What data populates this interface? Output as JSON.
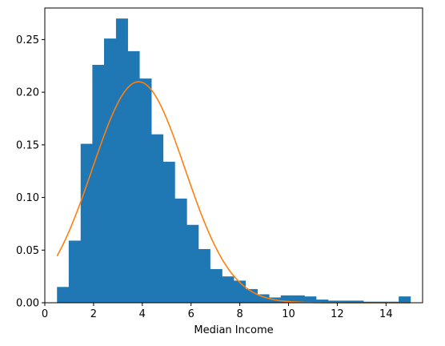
{
  "chart_data": {
    "type": "bar",
    "subtype": "histogram-with-density-curve",
    "title": "",
    "xlabel": "Median Income",
    "ylabel": "",
    "xlim": [
      0.0,
      15.5
    ],
    "ylim": [
      0.0,
      0.28
    ],
    "xticks": [
      0,
      2,
      4,
      6,
      8,
      10,
      12,
      14
    ],
    "yticks": [
      0.0,
      0.05,
      0.1,
      0.15,
      0.2,
      0.25
    ],
    "xtick_labels": [
      "0",
      "2",
      "4",
      "6",
      "8",
      "10",
      "12",
      "14"
    ],
    "ytick_labels": [
      "0.00",
      "0.05",
      "0.10",
      "0.15",
      "0.20",
      "0.25"
    ],
    "grid": false,
    "legend": "none",
    "bin_edges": [
      0.5,
      0.98,
      1.47,
      1.95,
      2.43,
      2.92,
      3.4,
      3.88,
      4.37,
      4.85,
      5.33,
      5.82,
      6.3,
      6.78,
      7.27,
      7.75,
      8.23,
      8.72,
      9.2,
      9.68,
      10.17,
      10.65,
      11.13,
      11.62,
      12.1,
      12.58,
      13.07,
      13.55,
      14.03,
      14.52,
      15.0
    ],
    "bar_values": [
      0.015,
      0.059,
      0.151,
      0.226,
      0.251,
      0.27,
      0.239,
      0.213,
      0.16,
      0.134,
      0.099,
      0.074,
      0.051,
      0.032,
      0.025,
      0.021,
      0.013,
      0.008,
      0.005,
      0.007,
      0.007,
      0.006,
      0.003,
      0.002,
      0.002,
      0.002,
      0.001,
      0.001,
      0.001,
      0.006
    ],
    "bar_color": "#1f77b4",
    "curve": {
      "type": "normal-density",
      "mean": 3.85,
      "std": 1.9,
      "x_range": [
        0.5,
        15.0
      ],
      "color": "#ff7f0e"
    }
  }
}
